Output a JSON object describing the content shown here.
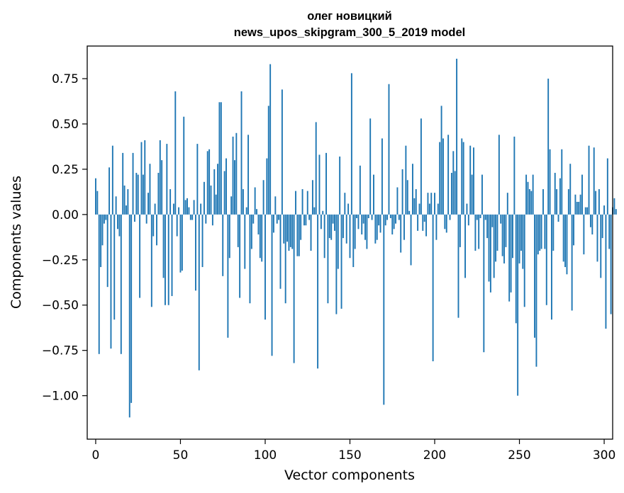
{
  "chart_data": {
    "type": "bar",
    "title_line1": "олег новицкий",
    "title_line2": "news_upos_skipgram_300_5_2019 model",
    "xlabel": "Vector components",
    "ylabel": "Components values",
    "xlim": [
      -5,
      305
    ],
    "ylim": [
      -1.24,
      0.93
    ],
    "x_ticks": [
      0,
      50,
      100,
      150,
      200,
      250,
      300
    ],
    "x_tick_labels": [
      "0",
      "50",
      "100",
      "150",
      "200",
      "250",
      "300"
    ],
    "y_ticks": [
      0.75,
      0.5,
      0.25,
      0.0,
      -0.25,
      -0.5,
      -0.75,
      -1.0
    ],
    "y_tick_labels": [
      "0.75",
      "0.50",
      "0.25",
      "0.00",
      "−0.25",
      "−0.50",
      "−0.75",
      "−1.00"
    ],
    "bar_color": "#1f77b4",
    "values": [
      0.2,
      0.13,
      -0.77,
      -0.29,
      -0.17,
      -0.05,
      -0.03,
      -0.4,
      0.26,
      -0.74,
      0.38,
      -0.58,
      0.1,
      -0.08,
      -0.12,
      -0.77,
      0.34,
      0.16,
      0.05,
      0.14,
      -1.12,
      -1.04,
      0.34,
      -0.04,
      0.23,
      0.22,
      -0.46,
      0.4,
      0.22,
      0.41,
      -0.05,
      0.12,
      0.28,
      -0.51,
      -0.12,
      0.06,
      -0.17,
      0.23,
      0.41,
      0.3,
      -0.35,
      -0.5,
      0.39,
      -0.5,
      0.14,
      -0.45,
      0.06,
      0.68,
      -0.12,
      0.04,
      -0.32,
      -0.31,
      0.54,
      0.08,
      0.09,
      0.04,
      -0.03,
      -0.03,
      0.08,
      -0.42,
      0.39,
      -0.86,
      0.06,
      -0.29,
      0.18,
      -0.05,
      0.35,
      0.36,
      0.16,
      -0.06,
      0.25,
      0.11,
      0.28,
      0.62,
      0.62,
      -0.34,
      0.24,
      0.31,
      -0.68,
      -0.24,
      0.1,
      0.43,
      0.3,
      0.45,
      -0.18,
      -0.46,
      0.68,
      0.14,
      -0.3,
      0.04,
      0.44,
      -0.49,
      -0.19,
      -0.05,
      0.15,
      0.03,
      -0.11,
      -0.24,
      -0.26,
      0.19,
      -0.58,
      0.31,
      0.6,
      0.83,
      -0.78,
      -0.1,
      0.1,
      -0.05,
      -0.03,
      -0.41,
      0.69,
      -0.16,
      -0.49,
      -0.15,
      -0.2,
      -0.18,
      -0.19,
      -0.82,
      0.13,
      -0.23,
      -0.23,
      -0.14,
      0.14,
      -0.06,
      -0.06,
      0.13,
      -0.03,
      -0.2,
      0.19,
      0.04,
      0.51,
      -0.85,
      0.33,
      -0.08,
      0.02,
      -0.24,
      0.34,
      -0.49,
      -0.13,
      -0.14,
      -0.05,
      -0.09,
      -0.55,
      -0.3,
      0.32,
      -0.52,
      -0.13,
      0.12,
      -0.16,
      0.06,
      -0.24,
      0.78,
      -0.29,
      -0.19,
      -0.02,
      -0.08,
      0.27,
      -0.11,
      -0.05,
      -0.14,
      -0.19,
      -0.02,
      0.53,
      -0.03,
      0.22,
      -0.16,
      -0.14,
      -0.06,
      -0.1,
      0.42,
      -1.05,
      -0.06,
      -0.03,
      0.72,
      -0.02,
      -0.11,
      -0.08,
      -0.05,
      0.15,
      -0.03,
      -0.21,
      0.25,
      -0.14,
      0.38,
      0.19,
      0.02,
      -0.28,
      0.28,
      0.09,
      0.14,
      -0.09,
      0.06,
      0.53,
      -0.09,
      -0.04,
      -0.12,
      0.12,
      0.06,
      0.12,
      -0.81,
      0.12,
      -0.14,
      0.06,
      0.4,
      0.6,
      0.42,
      -0.08,
      -0.1,
      0.44,
      -0.03,
      0.23,
      0.35,
      0.24,
      0.86,
      -0.57,
      -0.18,
      0.42,
      0.4,
      -0.35,
      0.06,
      -0.06,
      0.38,
      0.22,
      0.37,
      -0.2,
      -0.03,
      -0.19,
      -0.02,
      0.22,
      -0.76,
      -0.03,
      -0.13,
      -0.37,
      -0.43,
      -0.07,
      -0.35,
      -0.26,
      -0.2,
      0.44,
      -0.05,
      -0.23,
      -0.27,
      -0.18,
      0.12,
      -0.48,
      -0.43,
      -0.24,
      0.43,
      -0.6,
      -1.0,
      -0.27,
      -0.2,
      -0.3,
      -0.51,
      0.22,
      0.18,
      0.14,
      0.13,
      0.22,
      -0.68,
      -0.84,
      -0.22,
      -0.2,
      -0.19,
      0.14,
      -0.19,
      -0.5,
      0.75,
      0.36,
      -0.58,
      -0.2,
      0.23,
      0.14,
      -0.04,
      0.2,
      0.36,
      -0.26,
      -0.29,
      -0.33,
      0.14,
      0.28,
      -0.53,
      -0.17,
      0.11,
      0.07,
      0.07,
      0.11,
      0.22,
      -0.22,
      0.04,
      0.04,
      0.38,
      -0.07,
      -0.11,
      0.37,
      0.13,
      -0.26,
      0.14,
      -0.35,
      -0.13,
      0.05,
      -0.63,
      0.31,
      -0.19,
      -0.55,
      0.04,
      0.09,
      0.03
    ]
  }
}
